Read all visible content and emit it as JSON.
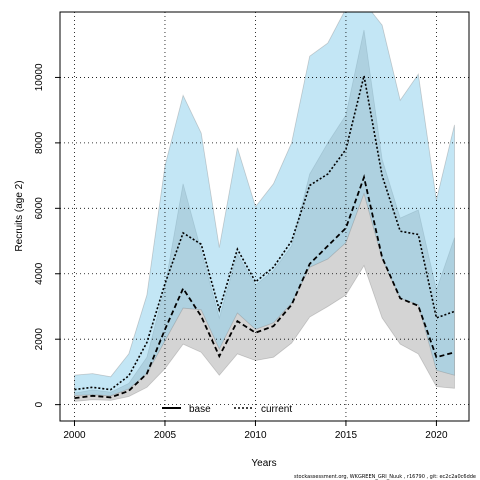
{
  "chart_data": {
    "type": "line",
    "xlabel": "Years",
    "ylabel": "Recruits (age 2)",
    "xlim": [
      1999.2,
      2021.8
    ],
    "ylim": [
      -500,
      12000
    ],
    "xticks": [
      2000,
      2005,
      2010,
      2015,
      2020
    ],
    "yticks": [
      0,
      2000,
      4000,
      6000,
      8000,
      10000
    ],
    "grid": true,
    "legend_position": "bottom-center",
    "x": [
      2000,
      2001,
      2002,
      2003,
      2004,
      2005,
      2006,
      2007,
      2008,
      2009,
      2010,
      2011,
      2012,
      2013,
      2014,
      2015,
      2016,
      2017,
      2018,
      2019,
      2020,
      2021
    ],
    "series": [
      {
        "name": "base",
        "color": "#000000",
        "band_color": "#a9a9a9",
        "line_style": "dashed",
        "values": [
          200,
          270,
          220,
          420,
          950,
          2300,
          3550,
          2700,
          1480,
          2550,
          2200,
          2400,
          3050,
          4300,
          4850,
          5400,
          6950,
          4500,
          3250,
          3020,
          1450,
          1600
        ],
        "lower": [
          100,
          150,
          130,
          250,
          530,
          1100,
          1850,
          1600,
          900,
          1550,
          1350,
          1450,
          1880,
          2680,
          3000,
          3350,
          4250,
          2650,
          1850,
          1550,
          550,
          500
        ],
        "upper": [
          350,
          450,
          380,
          650,
          1450,
          3600,
          6750,
          4700,
          2650,
          4600,
          3650,
          4100,
          4850,
          7050,
          8000,
          8850,
          11450,
          7500,
          5700,
          5950,
          3500,
          5100
        ]
      },
      {
        "name": "current",
        "color": "#000000",
        "band_color": "#87ceeb",
        "line_style": "dotted",
        "values": [
          460,
          530,
          460,
          880,
          1900,
          3700,
          5250,
          4900,
          2900,
          4750,
          3750,
          4200,
          5000,
          6700,
          7050,
          7800,
          10050,
          7000,
          5300,
          5200,
          2650,
          2850
        ],
        "lower": [
          280,
          300,
          270,
          480,
          950,
          1950,
          2950,
          2900,
          1700,
          2800,
          2300,
          2500,
          3100,
          4200,
          4450,
          4950,
          6450,
          4450,
          3250,
          3050,
          1050,
          900
        ],
        "upper": [
          900,
          950,
          850,
          1550,
          3350,
          7300,
          9450,
          8300,
          4800,
          7850,
          6050,
          6750,
          8000,
          10650,
          11050,
          12100,
          12300,
          11600,
          9300,
          10100,
          6250,
          8550
        ]
      }
    ]
  },
  "footer": {
    "text": "stockassessment.org,  WKGREEN_GRI_Nuuk ,  r16790 ,  git:  ec2c2a0c6dde"
  }
}
